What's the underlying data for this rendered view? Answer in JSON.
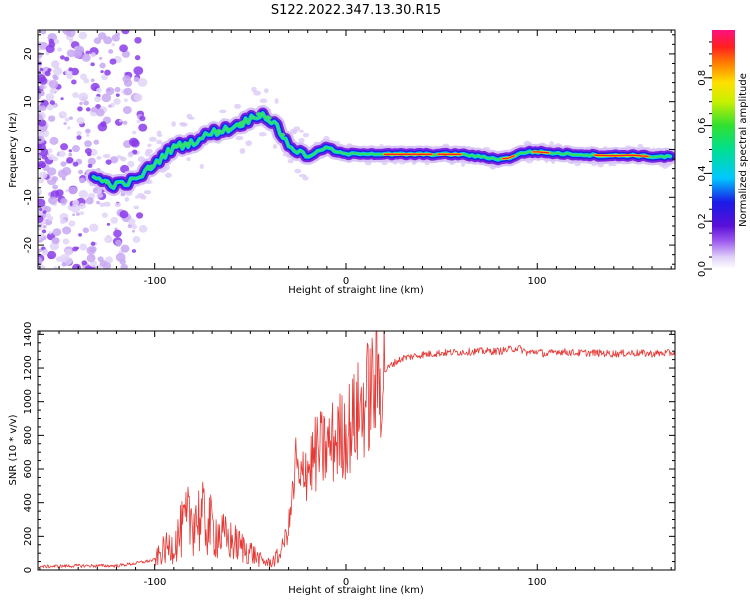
{
  "title": "S122.2022.347.13.30.R15",
  "colors": {
    "snr_line": "#e53935",
    "sg_low": "#d7c3f5",
    "sg_mid": "#7b22e3",
    "sg_blue": "#1a1ae6",
    "axes": "#000000"
  },
  "chart_data": [
    {
      "type": "heatmap",
      "title": "S122.2022.347.13.30.R15",
      "xlabel": "Height of straight line (km)",
      "ylabel": "Frequency (Hz)",
      "xlim": [
        -161,
        172
      ],
      "ylim": [
        -25,
        25
      ],
      "xticks": [
        -100,
        0,
        100
      ],
      "xtick_labels": [
        "-100",
        "0",
        "100"
      ],
      "yticks": [
        -20,
        -10,
        0,
        10,
        20
      ],
      "ytick_labels": [
        "-20",
        "-10",
        "0",
        "10",
        "20"
      ],
      "ridge": {
        "x": [
          -132,
          -120,
          -110,
          -100,
          -90,
          -80,
          -70,
          -60,
          -52,
          -45,
          -40,
          -35,
          -30,
          -25,
          -20,
          -15,
          -10,
          -5,
          0,
          10,
          20,
          40,
          60,
          70,
          80,
          85,
          90,
          95,
          100,
          110,
          120,
          130,
          140,
          150,
          160,
          170
        ],
        "y": [
          -6,
          -7.5,
          -6.5,
          -3,
          0.5,
          1.5,
          3.5,
          4.5,
          6,
          7.5,
          6.5,
          4,
          1,
          -0.5,
          -1.5,
          -0.5,
          0.5,
          -0.5,
          -1,
          -0.8,
          -1,
          -1,
          -1,
          -1.5,
          -2,
          -1.8,
          -1,
          -0.5,
          -0.5,
          -0.8,
          -1,
          -1.2,
          -1.3,
          -1.2,
          -1.5,
          -1.5
        ]
      },
      "colorbar": {
        "label": "Normalized spectral amplitude",
        "range": [
          0.0,
          1.0
        ],
        "ticks": [
          0.0,
          0.2,
          0.4,
          0.6,
          0.8
        ],
        "tick_labels": [
          "0.0",
          "0.2",
          "0.4",
          "0.6",
          "0.8"
        ]
      }
    },
    {
      "type": "line",
      "xlabel": "Height of straight line (km)",
      "ylabel": "SNR (10 * v/v)",
      "xlim": [
        -161,
        172
      ],
      "ylim": [
        0,
        1420
      ],
      "xticks": [
        -100,
        0,
        100
      ],
      "xtick_labels": [
        "-100",
        "0",
        "100"
      ],
      "yticks": [
        0,
        200,
        400,
        600,
        800,
        1000,
        1200,
        1400
      ],
      "ytick_labels": [
        "0",
        "200",
        "400",
        "600",
        "800",
        "1000",
        "1200",
        "1400"
      ],
      "series": [
        {
          "x": [
            -160,
            -140,
            -120,
            -110,
            -100,
            -95,
            -90,
            -85,
            -80,
            -75,
            -70,
            -65,
            -60,
            -55,
            -50,
            -45,
            -40,
            -35,
            -30,
            -28,
            -26,
            -24,
            -22,
            -20,
            -15,
            -10,
            -5,
            0,
            5,
            10,
            15,
            20,
            25,
            30,
            40,
            50,
            60,
            70,
            80,
            90,
            95,
            100,
            105,
            110,
            120,
            130,
            140,
            150,
            160,
            170
          ],
          "y": [
            20,
            25,
            25,
            40,
            60,
            120,
            150,
            250,
            330,
            300,
            250,
            200,
            170,
            140,
            110,
            60,
            40,
            80,
            250,
            420,
            650,
            450,
            650,
            600,
            700,
            720,
            780,
            820,
            900,
            1000,
            1100,
            1180,
            1230,
            1260,
            1280,
            1290,
            1295,
            1300,
            1300,
            1320,
            1290,
            1300,
            1280,
            1300,
            1290,
            1290,
            1285,
            1290,
            1285,
            1290
          ]
        }
      ]
    }
  ]
}
